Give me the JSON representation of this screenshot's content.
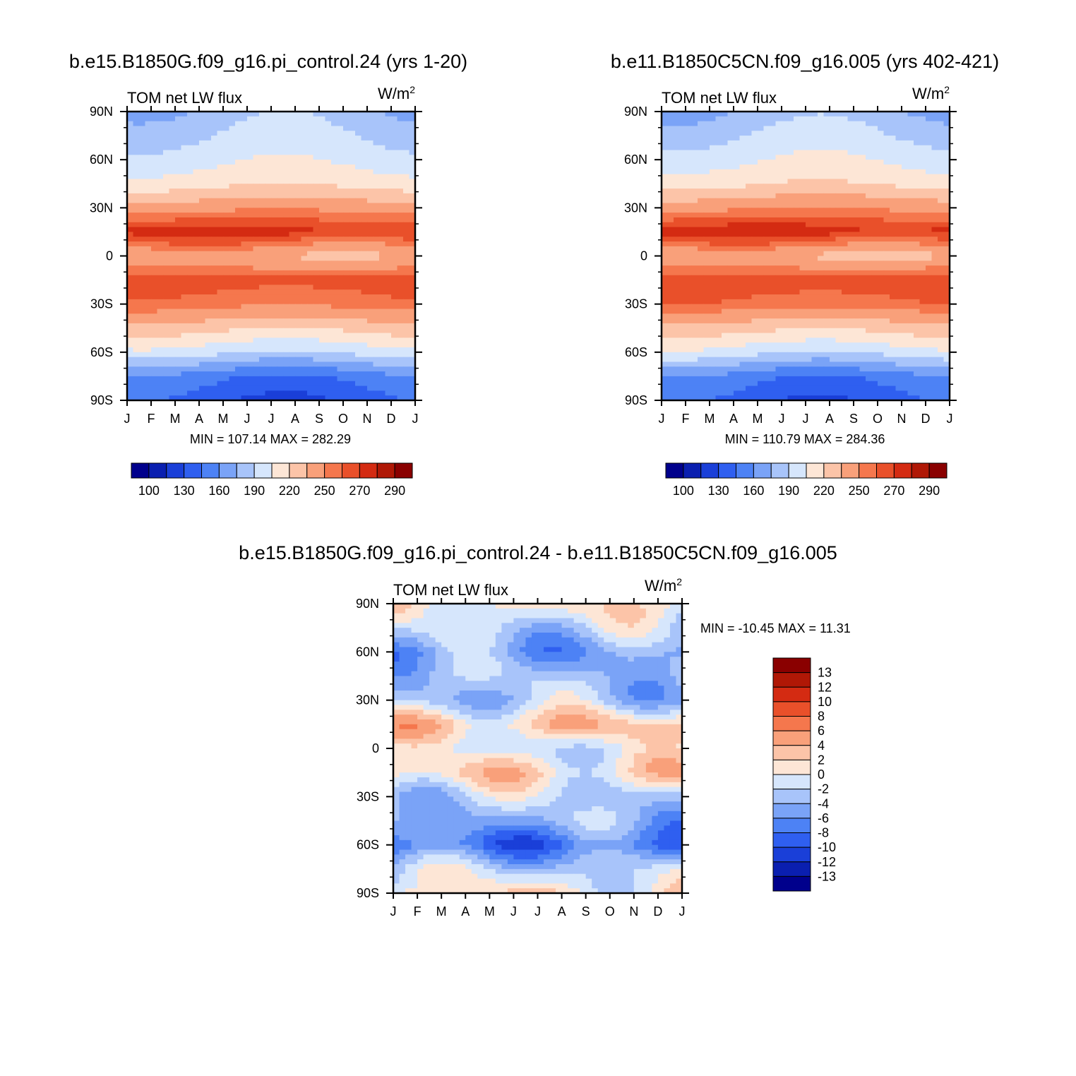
{
  "colors": {
    "palette": [
      "#00008c",
      "#0a1fb0",
      "#1a3fd8",
      "#2f5ff0",
      "#4d82f5",
      "#7aa3f7",
      "#a8c4fa",
      "#d6e6fc",
      "#fde6d6",
      "#fcc4a8",
      "#f9a07a",
      "#f5774d",
      "#e9502a",
      "#d42b12",
      "#b01806",
      "#8a0000"
    ]
  },
  "panels": {
    "left": {
      "title": "b.e15.B1850G.f09_g16.pi_control.24 (yrs 1-20)",
      "variable": "TOM net LW flux",
      "units": "W/m",
      "units_sup": "2",
      "stats": "MIN = 107.14 MAX = 282.29"
    },
    "right": {
      "title": "b.e11.B1850C5CN.f09_g16.005 (yrs 402-421)",
      "variable": "TOM net LW flux",
      "units": "W/m",
      "units_sup": "2",
      "stats": "MIN = 110.79 MAX = 284.36"
    },
    "diff": {
      "title": "b.e15.B1850G.f09_g16.pi_control.24 - b.e11.B1850C5CN.f09_g16.005",
      "variable": "TOM net LW flux",
      "units": "W/m",
      "units_sup": "2",
      "stats": "MIN = -10.45 MAX =  11.31"
    }
  },
  "chart_data": [
    {
      "type": "heatmap",
      "title": "b.e15.B1850G.f09_g16.pi_control.24 (yrs 1-20)",
      "subtitle": "TOM net LW flux",
      "units": "W/m2",
      "x_ticks": [
        "J",
        "F",
        "M",
        "A",
        "M",
        "J",
        "J",
        "A",
        "S",
        "O",
        "N",
        "D",
        "J"
      ],
      "y_ticks": [
        "90N",
        "60N",
        "30N",
        "0",
        "30S",
        "60S",
        "90S"
      ],
      "colorbar_labels": [
        "100",
        "130",
        "160",
        "190",
        "220",
        "250",
        "270",
        "290"
      ],
      "levels": [
        100,
        115,
        130,
        145,
        160,
        175,
        190,
        205,
        220,
        235,
        250,
        260,
        270,
        280,
        290
      ],
      "min": 107.14,
      "max": 282.29,
      "latitude_profile": [
        {
          "lat": 90,
          "v": 180
        },
        {
          "lat": 75,
          "v": 190
        },
        {
          "lat": 60,
          "v": 200
        },
        {
          "lat": 45,
          "v": 215
        },
        {
          "lat": 30,
          "v": 245
        },
        {
          "lat": 15,
          "v": 275
        },
        {
          "lat": 0,
          "v": 235
        },
        {
          "lat": -15,
          "v": 265
        },
        {
          "lat": -30,
          "v": 255
        },
        {
          "lat": -45,
          "v": 225
        },
        {
          "lat": -60,
          "v": 195
        },
        {
          "lat": -75,
          "v": 150
        },
        {
          "lat": -90,
          "v": 135
        }
      ]
    },
    {
      "type": "heatmap",
      "title": "b.e11.B1850C5CN.f09_g16.005 (yrs 402-421)",
      "subtitle": "TOM net LW flux",
      "units": "W/m2",
      "x_ticks": [
        "J",
        "F",
        "M",
        "A",
        "M",
        "J",
        "J",
        "A",
        "S",
        "O",
        "N",
        "D",
        "J"
      ],
      "y_ticks": [
        "90N",
        "60N",
        "30N",
        "0",
        "30S",
        "60S",
        "90S"
      ],
      "colorbar_labels": [
        "100",
        "130",
        "160",
        "190",
        "220",
        "250",
        "270",
        "290"
      ],
      "levels": [
        100,
        115,
        130,
        145,
        160,
        175,
        190,
        205,
        220,
        235,
        250,
        260,
        270,
        280,
        290
      ],
      "min": 110.79,
      "max": 284.36,
      "latitude_profile": [
        {
          "lat": 90,
          "v": 178
        },
        {
          "lat": 75,
          "v": 190
        },
        {
          "lat": 60,
          "v": 202
        },
        {
          "lat": 45,
          "v": 217
        },
        {
          "lat": 30,
          "v": 248
        },
        {
          "lat": 15,
          "v": 276
        },
        {
          "lat": 0,
          "v": 233
        },
        {
          "lat": -15,
          "v": 268
        },
        {
          "lat": -30,
          "v": 257
        },
        {
          "lat": -45,
          "v": 226
        },
        {
          "lat": -60,
          "v": 196
        },
        {
          "lat": -75,
          "v": 152
        },
        {
          "lat": -90,
          "v": 137
        }
      ]
    },
    {
      "type": "heatmap",
      "title": "b.e15.B1850G.f09_g16.pi_control.24 - b.e11.B1850C5CN.f09_g16.005",
      "subtitle": "TOM net LW flux",
      "units": "W/m2",
      "x_ticks": [
        "J",
        "F",
        "M",
        "A",
        "M",
        "J",
        "J",
        "A",
        "S",
        "O",
        "N",
        "D",
        "J"
      ],
      "y_ticks": [
        "90N",
        "60N",
        "30N",
        "0",
        "30S",
        "60S",
        "90S"
      ],
      "colorbar_labels": [
        "13",
        "12",
        "10",
        "8",
        "6",
        "4",
        "2",
        "0",
        "-2",
        "-4",
        "-6",
        "-8",
        "-10",
        "-12",
        "-13"
      ],
      "levels": [
        -13,
        -12,
        -10,
        -8,
        -6,
        -4,
        -2,
        0,
        2,
        4,
        6,
        8,
        10,
        12,
        13
      ],
      "min": -10.45,
      "max": 11.31,
      "latitude_profile": [
        {
          "lat": 90,
          "v": 1
        },
        {
          "lat": 75,
          "v": -2
        },
        {
          "lat": 60,
          "v": -5
        },
        {
          "lat": 45,
          "v": -3
        },
        {
          "lat": 30,
          "v": -3
        },
        {
          "lat": 15,
          "v": 3
        },
        {
          "lat": 0,
          "v": -1
        },
        {
          "lat": -15,
          "v": 2
        },
        {
          "lat": -30,
          "v": -2
        },
        {
          "lat": -45,
          "v": -4
        },
        {
          "lat": -60,
          "v": -8
        },
        {
          "lat": -75,
          "v": -2
        },
        {
          "lat": -90,
          "v": 1
        }
      ]
    }
  ]
}
